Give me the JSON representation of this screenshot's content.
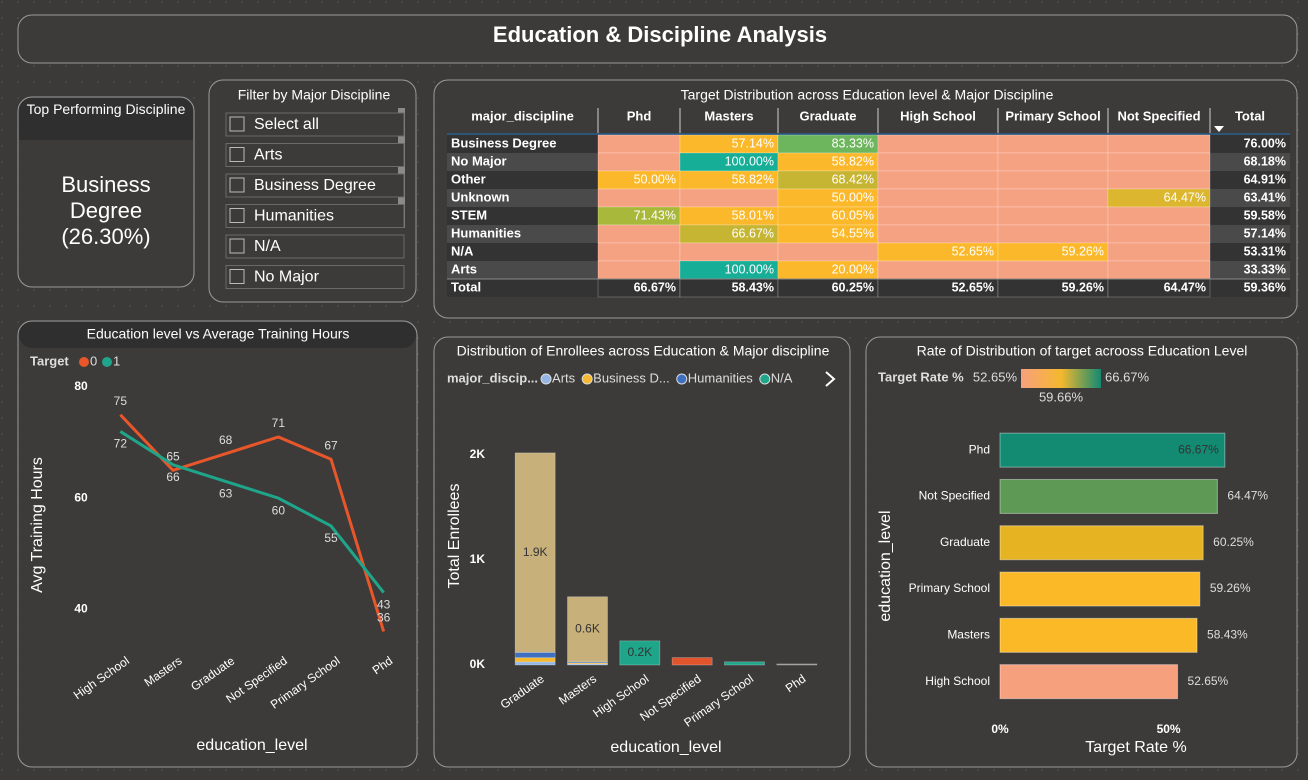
{
  "header": {
    "title": "Education & Discipline Analysis"
  },
  "kpi": {
    "title": "Top Performing Discipline",
    "value": "Business Degree (26.30%)"
  },
  "slicer": {
    "title": "Filter by Major Discipline",
    "items": [
      "Select all",
      "Arts",
      "Business Degree",
      "Humanities",
      "N/A",
      "No Major"
    ]
  },
  "matrix": {
    "title": "Target Distribution across Education level & Major Discipline",
    "columns": [
      "major_discipline",
      "Phd",
      "Masters",
      "Graduate",
      "High School",
      "Primary School",
      "Not Specified",
      "Total"
    ],
    "rows": [
      {
        "label": "Business Degree",
        "cells": [
          null,
          "57.14%",
          "83.33%",
          null,
          null,
          null,
          "76.00%"
        ]
      },
      {
        "label": "No Major",
        "cells": [
          null,
          "100.00%",
          "58.82%",
          null,
          null,
          null,
          "68.18%"
        ]
      },
      {
        "label": "Other",
        "cells": [
          "50.00%",
          "58.82%",
          "68.42%",
          null,
          null,
          null,
          "64.91%"
        ]
      },
      {
        "label": "Unknown",
        "cells": [
          null,
          null,
          "50.00%",
          null,
          null,
          "64.47%",
          "63.41%"
        ]
      },
      {
        "label": "STEM",
        "cells": [
          "71.43%",
          "58.01%",
          "60.05%",
          null,
          null,
          null,
          "59.58%"
        ]
      },
      {
        "label": "Humanities",
        "cells": [
          null,
          "66.67%",
          "54.55%",
          null,
          null,
          null,
          "57.14%"
        ]
      },
      {
        "label": "N/A",
        "cells": [
          null,
          null,
          null,
          "52.65%",
          "59.26%",
          null,
          "53.31%"
        ]
      },
      {
        "label": "Arts",
        "cells": [
          null,
          "100.00%",
          "20.00%",
          null,
          null,
          null,
          "33.33%"
        ]
      },
      {
        "label": "Total",
        "cells": [
          "66.67%",
          "58.43%",
          "60.25%",
          "52.65%",
          "59.26%",
          "64.47%",
          "59.36%"
        ]
      }
    ]
  },
  "chart_data": [
    {
      "type": "line",
      "title": "Education level vs Average Training Hours",
      "legend_title": "Target",
      "categories": [
        "High School",
        "Masters",
        "Graduate",
        "Not Specified",
        "Primary School",
        "Phd"
      ],
      "series": [
        {
          "name": "0",
          "color": "#e8562a",
          "values": [
            75,
            65,
            68,
            71,
            67,
            36
          ]
        },
        {
          "name": "1",
          "color": "#1fa58a",
          "values": [
            72,
            66,
            63,
            60,
            55,
            43
          ]
        }
      ],
      "ylim": [
        35,
        80
      ],
      "yticks": [
        40,
        60,
        80
      ],
      "xlabel": "education_level",
      "ylabel": "Avg Training Hours"
    },
    {
      "type": "stacked_bar",
      "title": "Distribution of Enrollees across Education & Major discipline",
      "legend_title": "major_discip...",
      "categories": [
        "Graduate",
        "Masters",
        "High School",
        "Not Specified",
        "Primary School",
        "Phd"
      ],
      "series": [
        {
          "name": "Arts",
          "color": "#93b6e4",
          "values": [
            30,
            10,
            null,
            null,
            null,
            null
          ]
        },
        {
          "name": "Business D...",
          "color": "#f5b82e",
          "values": [
            40,
            10,
            null,
            null,
            null,
            null
          ]
        },
        {
          "name": "Humanities",
          "color": "#3f6fc0",
          "values": [
            50,
            10,
            null,
            null,
            null,
            null
          ]
        },
        {
          "color": "#c8b07b",
          "values": [
            1900,
            620,
            null,
            null,
            null,
            null
          ],
          "value_labels": [
            "1.9K",
            "0.6K",
            null,
            null,
            null,
            null
          ]
        },
        {
          "name": "N/A",
          "color": "#1fa58a",
          "values": [
            null,
            null,
            230,
            null,
            30,
            null
          ],
          "value_labels": [
            null,
            null,
            "0.2K",
            null,
            null,
            null
          ]
        },
        {
          "color": "#e2542c",
          "values": [
            null,
            null,
            null,
            70,
            null,
            null
          ]
        },
        {
          "color": "#8a8a8a",
          "values": [
            null,
            null,
            null,
            null,
            null,
            10
          ]
        }
      ],
      "ylim": [
        0,
        2200
      ],
      "yticks": [
        {
          "value": 0,
          "label": "0K"
        },
        {
          "value": 1000,
          "label": "1K"
        },
        {
          "value": 2000,
          "label": "2K"
        }
      ],
      "xlabel": "education_level",
      "ylabel": "Total Enrollees"
    },
    {
      "type": "hbar",
      "title": "Rate of Distribution of target acrooss Education Level",
      "categories": [
        "Phd",
        "Not Specified",
        "Graduate",
        "Primary School",
        "Masters",
        "High School"
      ],
      "values": [
        66.67,
        64.47,
        60.25,
        59.26,
        58.43,
        52.65
      ],
      "value_labels": [
        "66.67%",
        "64.47%",
        "60.25%",
        "59.26%",
        "58.43%",
        "52.65%"
      ],
      "colors": [
        "#138a72",
        "#5e9a55",
        "#e6b422",
        "#fbb928",
        "#fbb928",
        "#f7a07e"
      ],
      "xlim": [
        0,
        86
      ],
      "xticks": [
        {
          "value": 0,
          "label": "0%"
        },
        {
          "value": 50,
          "label": "50%"
        }
      ],
      "xlabel": "Target Rate %",
      "ylabel": "education_level",
      "color_scale": {
        "title": "Target Rate %",
        "stops": [
          {
            "value": 52.65,
            "label": "52.65%",
            "color": "#f7a07e"
          },
          {
            "value": 59.66,
            "label": "59.66%",
            "color": "#f5b82e"
          },
          {
            "value": 66.67,
            "label": "66.67%",
            "color": "#138a72"
          }
        ]
      }
    }
  ]
}
